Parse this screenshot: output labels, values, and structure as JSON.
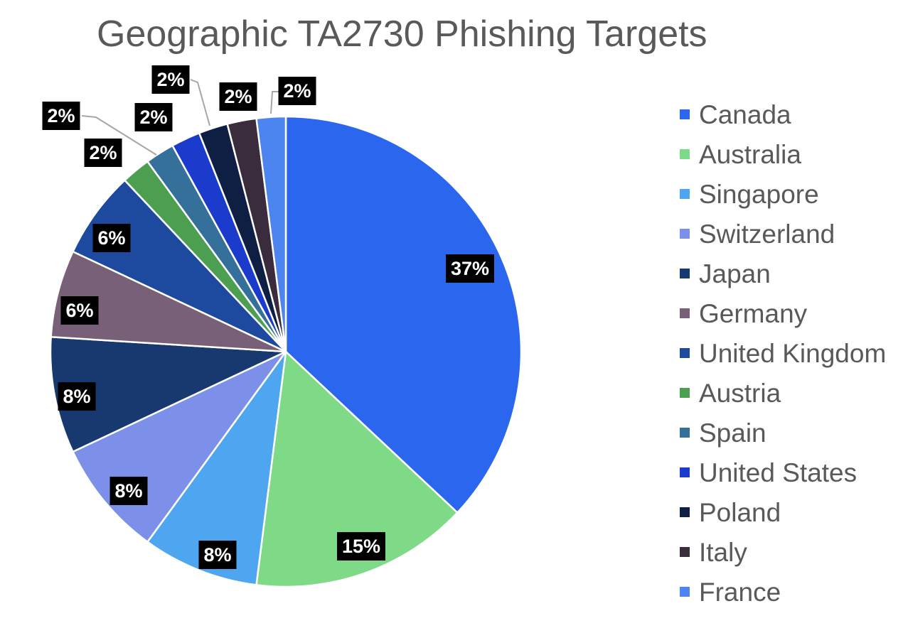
{
  "chart_data": {
    "type": "pie",
    "title": "Geographic TA2730 Phishing Targets",
    "title_color": "#595959",
    "legend_position": "right",
    "legend_text_color": "#595959",
    "start_angle_deg": 0,
    "direction": "clockwise",
    "background_color": "#ffffff",
    "slice_border_color": "#ffffff",
    "leader_line_color": "#a6a6a6",
    "label_style": {
      "background": "#000000",
      "text_color": "#ffffff"
    },
    "slices": [
      {
        "label": "Canada",
        "value": 37,
        "pct_label": "37%",
        "color": "#2a66ee"
      },
      {
        "label": "Australia",
        "value": 15,
        "pct_label": "15%",
        "color": "#7eda86"
      },
      {
        "label": "Singapore",
        "value": 8,
        "pct_label": "8%",
        "color": "#4da6ef"
      },
      {
        "label": "Switzerland",
        "value": 8,
        "pct_label": "8%",
        "color": "#7c90e9"
      },
      {
        "label": "Japan",
        "value": 8,
        "pct_label": "8%",
        "color": "#18396f"
      },
      {
        "label": "Germany",
        "value": 6,
        "pct_label": "6%",
        "color": "#786079"
      },
      {
        "label": "United Kingdom",
        "value": 6,
        "pct_label": "6%",
        "color": "#1d4a9e"
      },
      {
        "label": "Austria",
        "value": 2,
        "pct_label": "2%",
        "color": "#4c9f50"
      },
      {
        "label": "Spain",
        "value": 2,
        "pct_label": "2%",
        "color": "#35709b"
      },
      {
        "label": "United States",
        "value": 2,
        "pct_label": "2%",
        "color": "#1a3bcc"
      },
      {
        "label": "Poland",
        "value": 2,
        "pct_label": "2%",
        "color": "#0f1f44"
      },
      {
        "label": "Italy",
        "value": 2,
        "pct_label": "2%",
        "color": "#3a2b3d"
      },
      {
        "label": "France",
        "value": 2,
        "pct_label": "2%",
        "color": "#4c84f0"
      }
    ]
  }
}
